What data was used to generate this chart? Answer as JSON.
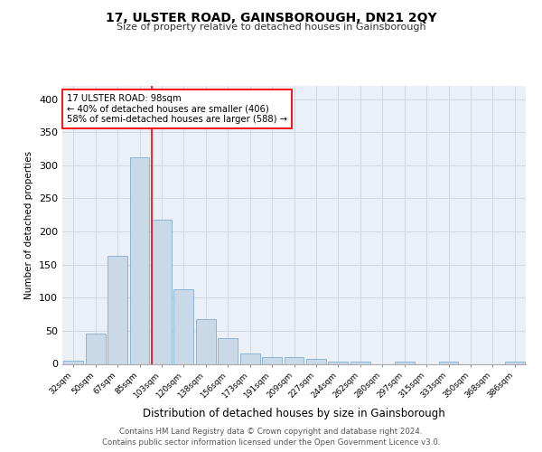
{
  "title": "17, ULSTER ROAD, GAINSBOROUGH, DN21 2QY",
  "subtitle": "Size of property relative to detached houses in Gainsborough",
  "xlabel": "Distribution of detached houses by size in Gainsborough",
  "ylabel": "Number of detached properties",
  "footer_line1": "Contains HM Land Registry data © Crown copyright and database right 2024.",
  "footer_line2": "Contains public sector information licensed under the Open Government Licence v3.0.",
  "bar_labels": [
    "32sqm",
    "50sqm",
    "67sqm",
    "85sqm",
    "103sqm",
    "120sqm",
    "138sqm",
    "156sqm",
    "173sqm",
    "191sqm",
    "209sqm",
    "227sqm",
    "244sqm",
    "262sqm",
    "280sqm",
    "297sqm",
    "315sqm",
    "333sqm",
    "350sqm",
    "368sqm",
    "386sqm"
  ],
  "bar_values": [
    5,
    46,
    163,
    312,
    218,
    113,
    67,
    39,
    16,
    10,
    10,
    7,
    3,
    3,
    0,
    3,
    0,
    3,
    0,
    0,
    3
  ],
  "bar_color": "#c9d9e8",
  "bar_edge_color": "#7faecf",
  "grid_color": "#d0d8e4",
  "background_color": "#eaf0f6",
  "annotation_box_text": "17 ULSTER ROAD: 98sqm\n← 40% of detached houses are smaller (406)\n58% of semi-detached houses are larger (588) →",
  "annotation_box_color": "white",
  "annotation_box_edge_color": "red",
  "vline_x_index": 3.56,
  "vline_color": "red",
  "ylim": [
    0,
    420
  ],
  "yticks": [
    0,
    50,
    100,
    150,
    200,
    250,
    300,
    350,
    400
  ]
}
